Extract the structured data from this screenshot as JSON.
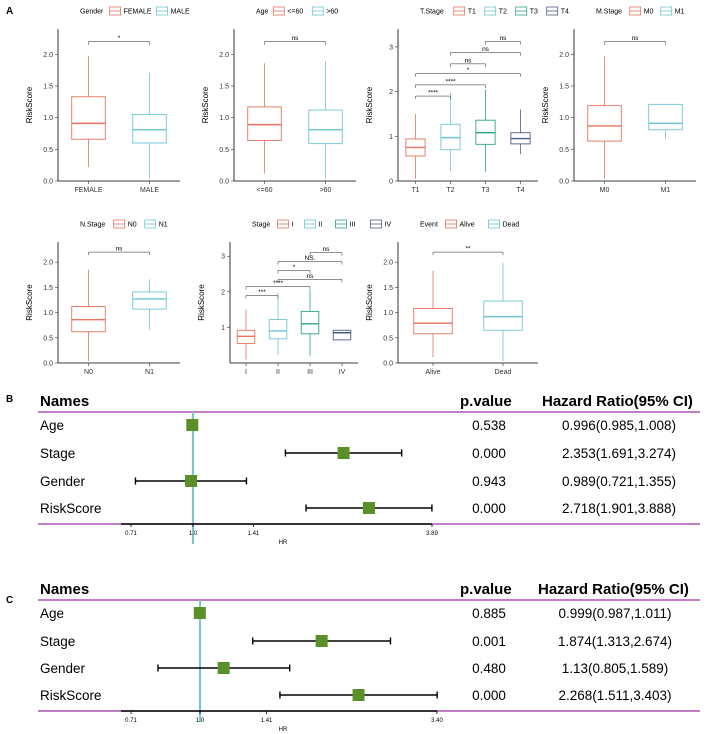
{
  "panel_labels": {
    "a": "A",
    "b": "B",
    "c": "C"
  },
  "colors": {
    "c1": "#E5735E",
    "c2": "#6CC5D6",
    "c3": "#2FA38A",
    "c4": "#4E5B86",
    "marker": "#5A8F29",
    "refline": "#7FC5CF",
    "rule": "#9B30A0"
  },
  "chart_data": [
    {
      "type": "boxplot",
      "id": "gender",
      "legend_title": "Gender",
      "ylabel": "RiskScore",
      "ylim": [
        0,
        2.4
      ],
      "yticks": [
        0.0,
        0.5,
        1.0,
        1.5,
        2.0
      ],
      "tick_labels": [
        "0.0",
        "0.5",
        "1.0",
        "1.5",
        "2.0"
      ],
      "categories": [
        "FEMALE",
        "MALE"
      ],
      "boxes": [
        {
          "min": 0.22,
          "q1": 0.66,
          "median": 0.91,
          "q3": 1.33,
          "max": 1.97
        },
        {
          "min": 0.04,
          "q1": 0.6,
          "median": 0.81,
          "q3": 1.05,
          "max": 1.71
        }
      ],
      "comparisons": [
        {
          "from": 0,
          "to": 1,
          "y": 2.2,
          "label": "*"
        }
      ]
    },
    {
      "type": "boxplot",
      "id": "age",
      "legend_title": "Age",
      "ylabel": "RiskScore",
      "ylim": [
        0,
        2.4
      ],
      "yticks": [
        0.0,
        0.5,
        1.0,
        1.5,
        2.0
      ],
      "tick_labels": [
        "0.0",
        "0.5",
        "1.0",
        "1.5",
        "2.0"
      ],
      "categories": [
        "<=60",
        ">60"
      ],
      "boxes": [
        {
          "min": 0.12,
          "q1": 0.64,
          "median": 0.89,
          "q3": 1.17,
          "max": 1.86
        },
        {
          "min": 0.04,
          "q1": 0.59,
          "median": 0.81,
          "q3": 1.12,
          "max": 1.89
        }
      ],
      "comparisons": [
        {
          "from": 0,
          "to": 1,
          "y": 2.2,
          "label": "ns"
        }
      ]
    },
    {
      "type": "boxplot",
      "id": "tstage",
      "legend_title": "T.Stage",
      "ylabel": "RiskScore",
      "ylim": [
        0,
        3.4
      ],
      "yticks": [
        0,
        1,
        2,
        3
      ],
      "tick_labels": [
        "0",
        "1",
        "2",
        "3"
      ],
      "categories": [
        "T1",
        "T2",
        "T3",
        "T4"
      ],
      "boxes": [
        {
          "min": 0.05,
          "q1": 0.56,
          "median": 0.75,
          "q3": 0.94,
          "max": 1.5
        },
        {
          "min": 0.22,
          "q1": 0.7,
          "median": 0.97,
          "q3": 1.27,
          "max": 1.97
        },
        {
          "min": 0.2,
          "q1": 0.82,
          "median": 1.08,
          "q3": 1.36,
          "max": 2.05
        },
        {
          "min": 0.6,
          "q1": 0.83,
          "median": 0.95,
          "q3": 1.08,
          "max": 1.6
        }
      ],
      "comparisons": [
        {
          "from": 0,
          "to": 1,
          "y": 1.9,
          "label": "****"
        },
        {
          "from": 0,
          "to": 2,
          "y": 2.15,
          "label": "****"
        },
        {
          "from": 0,
          "to": 3,
          "y": 2.4,
          "label": "*"
        },
        {
          "from": 1,
          "to": 2,
          "y": 2.62,
          "label": "ns"
        },
        {
          "from": 1,
          "to": 3,
          "y": 2.87,
          "label": "ns"
        },
        {
          "from": 2,
          "to": 3,
          "y": 3.12,
          "label": "ns"
        }
      ]
    },
    {
      "type": "boxplot",
      "id": "mstage",
      "legend_title": "M.Stage",
      "ylabel": "RiskScore",
      "ylim": [
        0,
        2.4
      ],
      "yticks": [
        0.0,
        0.5,
        1.0,
        1.5,
        2.0
      ],
      "tick_labels": [
        "0.0",
        "0.5",
        "1.0",
        "1.5",
        "2.0"
      ],
      "categories": [
        "M0",
        "M1"
      ],
      "boxes": [
        {
          "min": 0.04,
          "q1": 0.63,
          "median": 0.87,
          "q3": 1.19,
          "max": 1.97
        },
        {
          "min": 0.66,
          "q1": 0.81,
          "median": 0.91,
          "q3": 1.21,
          "max": 1.21
        }
      ],
      "comparisons": [
        {
          "from": 0,
          "to": 1,
          "y": 2.2,
          "label": "ns"
        }
      ]
    },
    {
      "type": "boxplot",
      "id": "nstage",
      "legend_title": "N.Stage",
      "ylabel": "RiskScore",
      "ylim": [
        0,
        2.4
      ],
      "yticks": [
        0.0,
        0.5,
        1.0,
        1.5,
        2.0
      ],
      "tick_labels": [
        "0.0",
        "0.5",
        "1.0",
        "1.5",
        "2.0"
      ],
      "categories": [
        "N0",
        "N1"
      ],
      "boxes": [
        {
          "min": 0.04,
          "q1": 0.62,
          "median": 0.86,
          "q3": 1.12,
          "max": 1.85
        },
        {
          "min": 0.66,
          "q1": 1.07,
          "median": 1.27,
          "q3": 1.41,
          "max": 1.66
        }
      ],
      "comparisons": [
        {
          "from": 0,
          "to": 1,
          "y": 2.2,
          "label": "ns"
        }
      ]
    },
    {
      "type": "boxplot",
      "id": "stage",
      "legend_title": "Stage",
      "ylabel": "RiskScore",
      "ylim": [
        0,
        3.4
      ],
      "yticks": [
        1,
        2,
        3
      ],
      "tick_labels": [
        "1",
        "2",
        "3"
      ],
      "categories": [
        "I",
        "II",
        "III",
        "IV"
      ],
      "boxes": [
        {
          "min": 0.1,
          "q1": 0.55,
          "median": 0.75,
          "q3": 0.92,
          "max": 1.5
        },
        {
          "min": 0.22,
          "q1": 0.68,
          "median": 0.9,
          "q3": 1.22,
          "max": 1.97
        },
        {
          "min": 0.2,
          "q1": 0.82,
          "median": 1.1,
          "q3": 1.45,
          "max": 2.05
        },
        {
          "min": 0.65,
          "q1": 0.65,
          "median": 0.85,
          "q3": 0.92,
          "max": 0.92
        }
      ],
      "comparisons": [
        {
          "from": 0,
          "to": 1,
          "y": 1.9,
          "label": "***"
        },
        {
          "from": 0,
          "to": 2,
          "y": 2.15,
          "label": "****"
        },
        {
          "from": 1,
          "to": 3,
          "y": 2.35,
          "label": "ns"
        },
        {
          "from": 1,
          "to": 2,
          "y": 2.6,
          "label": "*"
        },
        {
          "from": 1,
          "to": 3,
          "y": 2.85,
          "label": "NS."
        },
        {
          "from": 2,
          "to": 3,
          "y": 3.1,
          "label": "ns"
        }
      ]
    },
    {
      "type": "boxplot",
      "id": "event",
      "legend_title": "Event",
      "ylabel": "RiskScore",
      "ylim": [
        0,
        2.4
      ],
      "yticks": [
        0.0,
        0.5,
        1.0,
        1.5,
        2.0
      ],
      "tick_labels": [
        "0.0",
        "0.5",
        "1.0",
        "1.5",
        "2.0"
      ],
      "categories": [
        "Alive",
        "Dead"
      ],
      "boxes": [
        {
          "min": 0.12,
          "q1": 0.58,
          "median": 0.79,
          "q3": 1.08,
          "max": 1.83
        },
        {
          "min": 0.04,
          "q1": 0.65,
          "median": 0.92,
          "q3": 1.23,
          "max": 1.99
        }
      ],
      "comparisons": [
        {
          "from": 0,
          "to": 1,
          "y": 2.2,
          "label": "**"
        }
      ]
    },
    {
      "type": "forest",
      "id": "univariate",
      "panel": "B",
      "headers": {
        "names": "Names",
        "pvalue": "p.value",
        "hr": "Hazard Ratio(95% CI)"
      },
      "xlabel": "HR",
      "ticks": [
        0.71,
        1.0,
        1.41,
        3.89
      ],
      "tick_labels": [
        "0.71",
        "1.0",
        "1.41",
        "3.89"
      ],
      "rows": [
        {
          "name": "Age",
          "hr": 0.996,
          "lower": 0.985,
          "upper": 1.008,
          "pvalue": "0.538",
          "text": "0.996(0.985,1.008)"
        },
        {
          "name": "Stage",
          "hr": 2.353,
          "lower": 1.691,
          "upper": 3.274,
          "pvalue": "0.000",
          "text": "2.353(1.691,3.274)"
        },
        {
          "name": "Gender",
          "hr": 0.989,
          "lower": 0.721,
          "upper": 1.355,
          "pvalue": "0.943",
          "text": "0.989(0.721,1.355)"
        },
        {
          "name": "RiskScore",
          "hr": 2.718,
          "lower": 1.901,
          "upper": 3.888,
          "pvalue": "0.000",
          "text": "2.718(1.901,3.888)"
        }
      ]
    },
    {
      "type": "forest",
      "id": "multivariate",
      "panel": "C",
      "headers": {
        "names": "Names",
        "pvalue": "p.value",
        "hr": "Hazard Ratio(95% CI)"
      },
      "xlabel": "HR",
      "ticks": [
        0.71,
        1.0,
        1.41,
        3.4
      ],
      "tick_labels": [
        "0.71",
        "1.0",
        "1.41",
        "3.40"
      ],
      "rows": [
        {
          "name": "Age",
          "hr": 0.999,
          "lower": 0.987,
          "upper": 1.011,
          "pvalue": "0.885",
          "text": "0.999(0.987,1.011)"
        },
        {
          "name": "Stage",
          "hr": 1.874,
          "lower": 1.313,
          "upper": 2.674,
          "pvalue": "0.001",
          "text": "1.874(1.313,2.674)"
        },
        {
          "name": "Gender",
          "hr": 1.13,
          "lower": 0.805,
          "upper": 1.589,
          "pvalue": "0.480",
          "text": "1.13(0.805,1.589)"
        },
        {
          "name": "RiskScore",
          "hr": 2.268,
          "lower": 1.511,
          "upper": 3.403,
          "pvalue": "0.000",
          "text": "2.268(1.511,3.403)"
        }
      ]
    }
  ]
}
